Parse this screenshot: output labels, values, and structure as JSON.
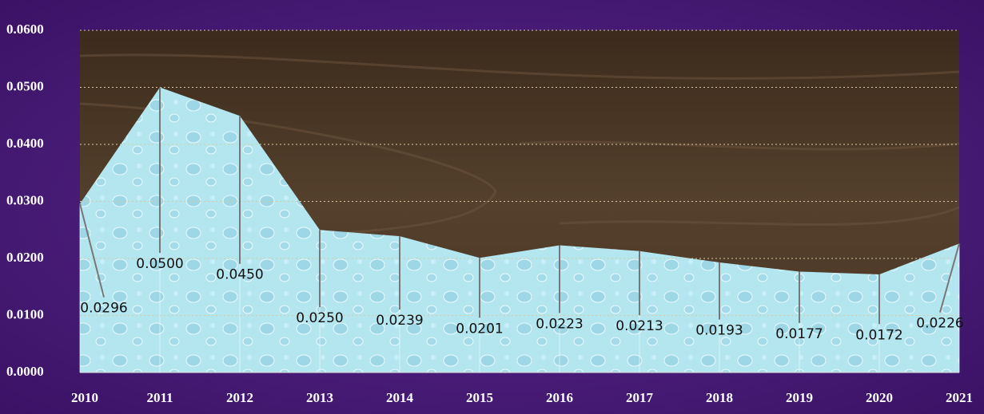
{
  "chart_data": {
    "type": "area",
    "categories": [
      "2010",
      "2011",
      "2012",
      "2013",
      "2014",
      "2015",
      "2016",
      "2017",
      "2018",
      "2019",
      "2020",
      "2021"
    ],
    "values": [
      0.0296,
      0.05,
      0.045,
      0.025,
      0.0239,
      0.0201,
      0.0223,
      0.0213,
      0.0193,
      0.0177,
      0.0172,
      0.0226
    ],
    "value_labels": [
      "0.0296",
      "0.0500",
      "0.0450",
      "0.0250",
      "0.0239",
      "0.0201",
      "0.0223",
      "0.0213",
      "0.0193",
      "0.0177",
      "0.0172",
      "0.0226"
    ],
    "color": "#b4e6f0",
    "ylim": [
      0,
      0.06
    ],
    "yticks": [
      {
        "value": 0,
        "label": "0.0000"
      },
      {
        "value": 0.01,
        "label": "0.0100"
      },
      {
        "value": 0.02,
        "label": "0.0200"
      },
      {
        "value": 0.03,
        "label": "0.0300"
      },
      {
        "value": 0.04,
        "label": "0.0400"
      },
      {
        "value": 0.05,
        "label": "0.0500"
      },
      {
        "value": 0.06,
        "label": "0.0600"
      }
    ],
    "grid": true
  }
}
